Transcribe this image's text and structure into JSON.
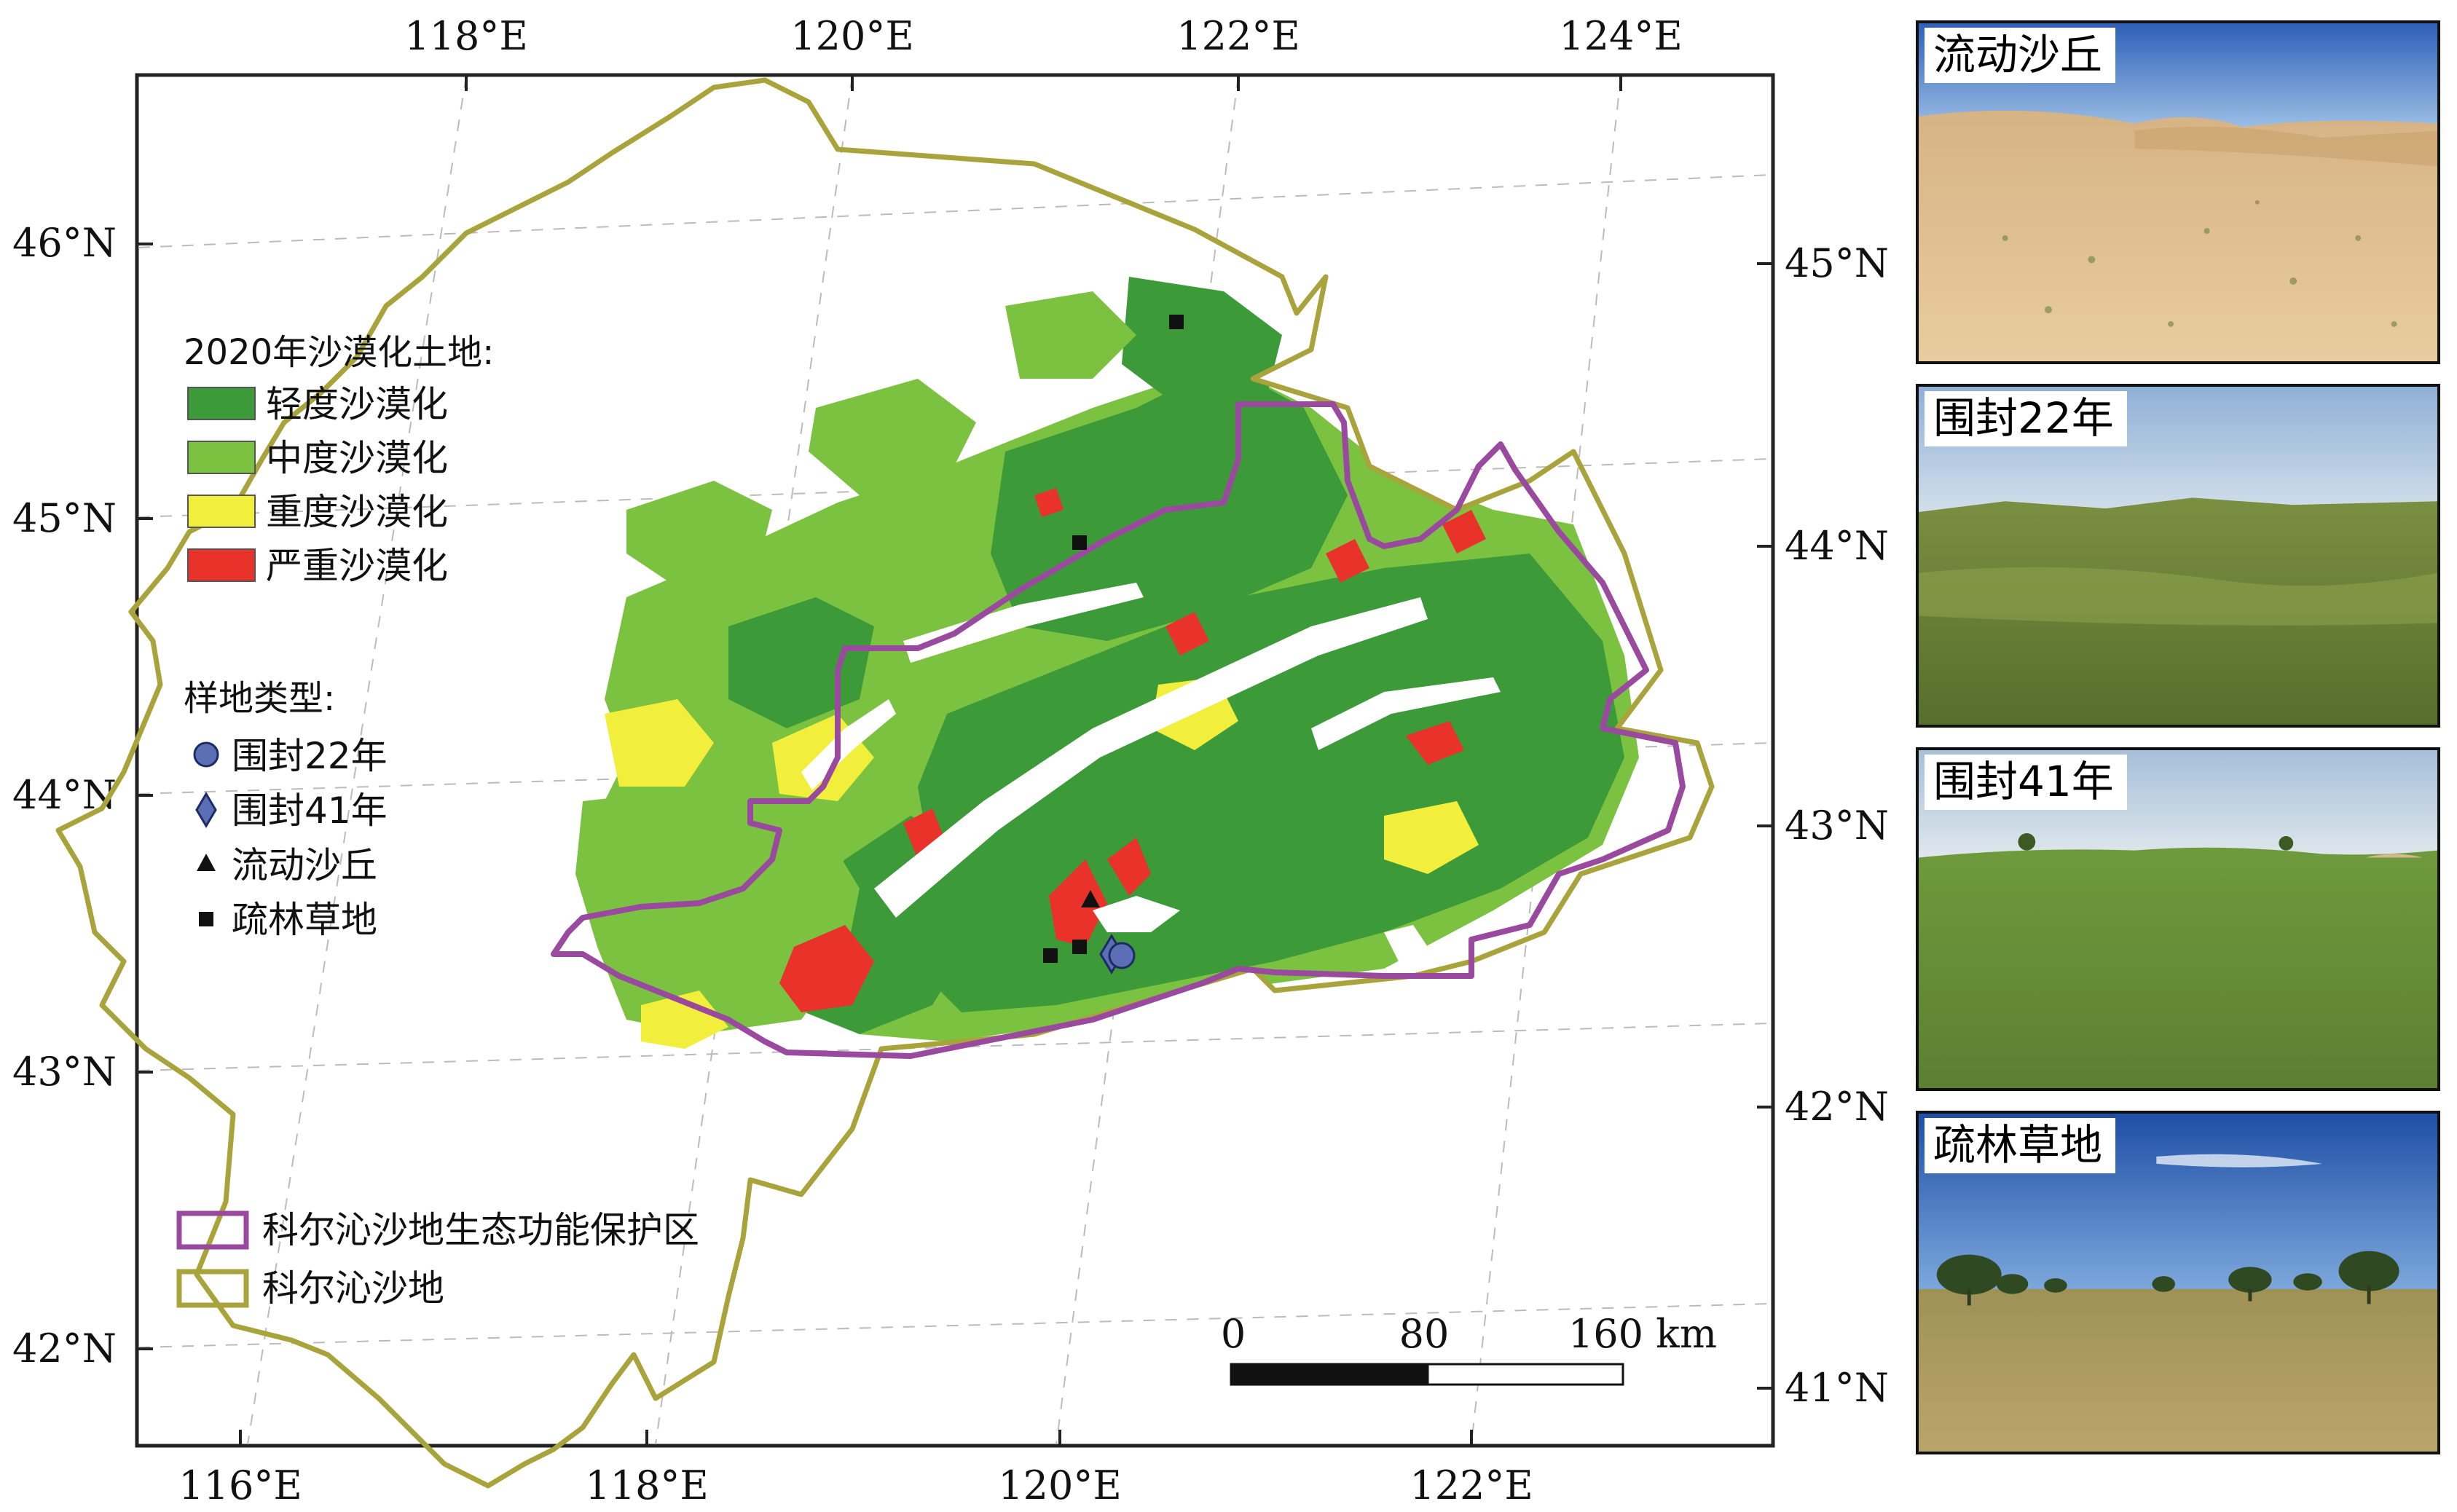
{
  "map": {
    "top_axis_labels": [
      "118°E",
      "120°E",
      "122°E",
      "124°E"
    ],
    "bottom_axis_labels": [
      "116°E",
      "118°E",
      "120°E",
      "122°E"
    ],
    "left_axis_labels": [
      "46°N",
      "45°N",
      "44°N",
      "43°N",
      "42°N"
    ],
    "right_axis_labels": [
      "45°N",
      "44°N",
      "43°N",
      "42°N",
      "41°N"
    ],
    "legend": {
      "desertification_title": "2020年沙漠化土地:",
      "desertification_classes": [
        {
          "label": "轻度沙漠化",
          "color": "#3d9a38"
        },
        {
          "label": "中度沙漠化",
          "color": "#7cc241"
        },
        {
          "label": "重度沙漠化",
          "color": "#f2ee3c"
        },
        {
          "label": "严重沙漠化",
          "color": "#e8322a"
        }
      ],
      "site_title": "样地类型:",
      "site_types": [
        {
          "label": "围封22年",
          "symbol": "circle"
        },
        {
          "label": "围封41年",
          "symbol": "diamond"
        },
        {
          "label": "流动沙丘",
          "symbol": "triangle"
        },
        {
          "label": "疏林草地",
          "symbol": "square"
        }
      ],
      "boundaries": [
        {
          "label": "科尔沁沙地生态功能保护区",
          "color": "#9a4a9e"
        },
        {
          "label": "科尔沁沙地",
          "color": "#a8a33a"
        }
      ]
    },
    "scale_bar": {
      "ticks": [
        "0",
        "80",
        "160 km"
      ]
    }
  },
  "photos": [
    {
      "label": "流动沙丘",
      "scene": "sand-dune"
    },
    {
      "label": "围封22年",
      "scene": "grassland"
    },
    {
      "label": "围封41年",
      "scene": "grassland"
    },
    {
      "label": "疏林草地",
      "scene": "savanna"
    }
  ],
  "colors": {
    "light": "#3d9a38",
    "moderate": "#7cc241",
    "severe": "#f2ee3c",
    "extreme": "#e8322a",
    "protection_boundary": "#9a4a9e",
    "sandland_boundary": "#a8a33a"
  }
}
